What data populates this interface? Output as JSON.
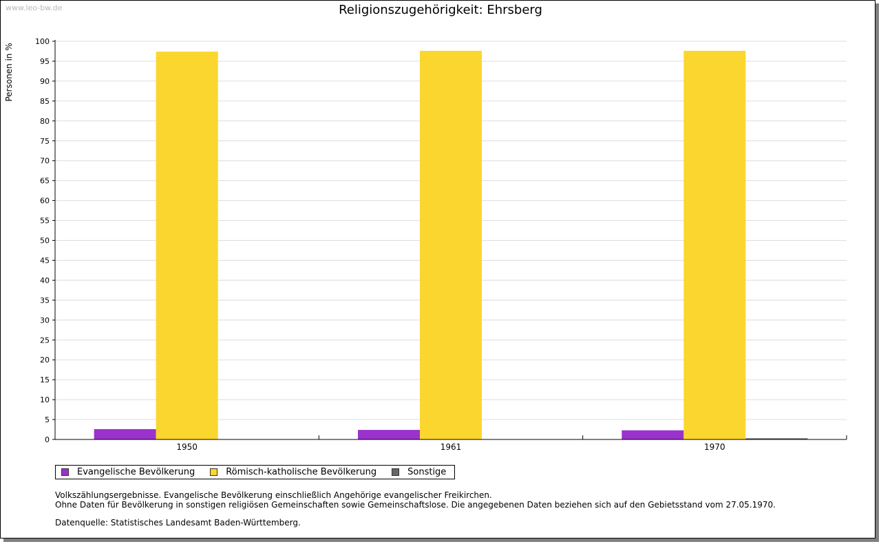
{
  "watermark": "www.leo-bw.de",
  "chart_data": {
    "type": "bar",
    "title": "Religionszugehörigkeit: Ehrsberg",
    "xlabel": "",
    "ylabel": "Personen in %",
    "ylim": [
      0,
      100
    ],
    "ytick_step": 5,
    "grid": true,
    "categories": [
      "1950",
      "1961",
      "1970"
    ],
    "series": [
      {
        "name": "Evangelische Bevölkerung",
        "color": "#9933cc",
        "values": [
          2.6,
          2.4,
          2.3
        ]
      },
      {
        "name": "Römisch-katholische Bevölkerung",
        "color": "#fbd62f",
        "values": [
          97.4,
          97.6,
          97.6
        ]
      },
      {
        "name": "Sonstige",
        "color": "#666666",
        "values": [
          0.0,
          0.0,
          0.3
        ]
      }
    ],
    "legend_position": "bottom-left"
  },
  "notes": {
    "line1": "Volkszählungsergebnisse. Evangelische Bevölkerung einschließlich Angehörige evangelischer Freikirchen.",
    "line2": "Ohne Daten für Bevölkerung in sonstigen religiösen Gemeinschaften sowie Gemeinschaftslose. Die angegebenen Daten beziehen sich auf den Gebietsstand vom 27.05.1970.",
    "source": "Datenquelle: Statistisches Landesamt Baden-Württemberg."
  }
}
